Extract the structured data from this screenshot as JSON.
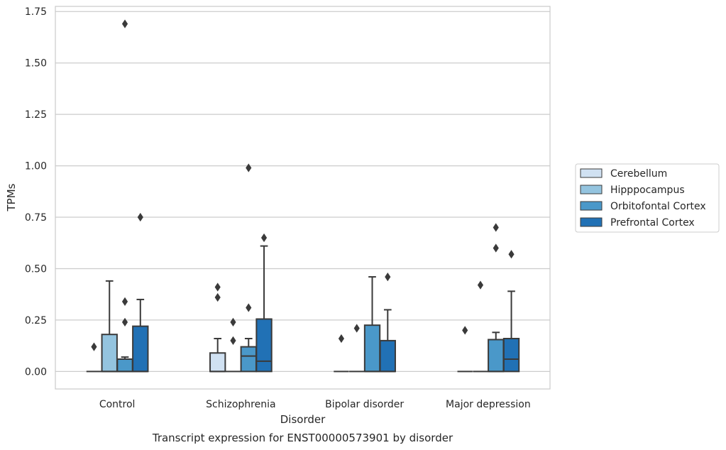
{
  "chart_data": {
    "type": "box",
    "title": "",
    "caption": "Transcript expression for ENST00000573901 by disorder",
    "xlabel": "Disorder",
    "ylabel": "TPMs",
    "ylim": [
      -0.085,
      1.775
    ],
    "yticks": [
      0.0,
      0.25,
      0.5,
      0.75,
      1.0,
      1.25,
      1.5,
      1.75
    ],
    "ytick_labels": [
      "0.00",
      "0.25",
      "0.50",
      "0.75",
      "1.00",
      "1.25",
      "1.50",
      "1.75"
    ],
    "grid": "horizontal",
    "legend_placement": "right",
    "categories": [
      "Control",
      "Schizophrenia",
      "Bipolar disorder",
      "Major depression"
    ],
    "series": [
      {
        "name": "Cerebellum",
        "color": "#d0e1f2",
        "boxes": [
          {
            "min": 0,
            "q1": 0,
            "median": 0,
            "q3": 0,
            "max": 0,
            "outliers": [
              0.12
            ]
          },
          {
            "min": 0,
            "q1": 0,
            "median": 0,
            "q3": 0.09,
            "max": 0.16,
            "outliers": [
              0.36,
              0.41
            ]
          },
          {
            "min": 0,
            "q1": 0,
            "median": 0,
            "q3": 0,
            "max": 0,
            "outliers": [
              0.16
            ]
          },
          {
            "min": 0,
            "q1": 0,
            "median": 0,
            "q3": 0,
            "max": 0,
            "outliers": [
              0.2
            ]
          }
        ]
      },
      {
        "name": "Hipppocampus",
        "color": "#94c4df",
        "boxes": [
          {
            "min": 0,
            "q1": 0,
            "median": 0,
            "q3": 0.18,
            "max": 0.44,
            "outliers": []
          },
          {
            "min": 0,
            "q1": 0,
            "median": 0,
            "q3": 0,
            "max": 0,
            "outliers": [
              0.15,
              0.24
            ]
          },
          {
            "min": 0,
            "q1": 0,
            "median": 0,
            "q3": 0,
            "max": 0,
            "outliers": [
              0.21
            ]
          },
          {
            "min": 0,
            "q1": 0,
            "median": 0,
            "q3": 0,
            "max": 0,
            "outliers": [
              0.42
            ]
          }
        ]
      },
      {
        "name": "Orbitofontal Cortex",
        "color": "#4a98c9",
        "boxes": [
          {
            "min": 0,
            "q1": 0,
            "median": 0,
            "q3": 0.06,
            "max": 0.07,
            "outliers": [
              0.24,
              0.34,
              1.69
            ]
          },
          {
            "min": 0,
            "q1": 0,
            "median": 0.075,
            "q3": 0.12,
            "max": 0.16,
            "outliers": [
              0.31,
              0.99
            ]
          },
          {
            "min": 0,
            "q1": 0,
            "median": 0,
            "q3": 0.225,
            "max": 0.46,
            "outliers": []
          },
          {
            "min": 0,
            "q1": 0,
            "median": 0,
            "q3": 0.155,
            "max": 0.19,
            "outliers": [
              0.6,
              0.7
            ]
          }
        ]
      },
      {
        "name": "Prefrontal Cortex",
        "color": "#2171b5",
        "boxes": [
          {
            "min": 0,
            "q1": 0,
            "median": 0,
            "q3": 0.22,
            "max": 0.35,
            "outliers": [
              0.75
            ]
          },
          {
            "min": 0,
            "q1": 0,
            "median": 0.05,
            "q3": 0.255,
            "max": 0.61,
            "outliers": [
              0.65
            ]
          },
          {
            "min": 0,
            "q1": 0,
            "median": 0,
            "q3": 0.15,
            "max": 0.3,
            "outliers": [
              0.46
            ]
          },
          {
            "min": 0,
            "q1": 0,
            "median": 0.06,
            "q3": 0.16,
            "max": 0.39,
            "outliers": [
              0.57
            ]
          }
        ]
      }
    ]
  }
}
